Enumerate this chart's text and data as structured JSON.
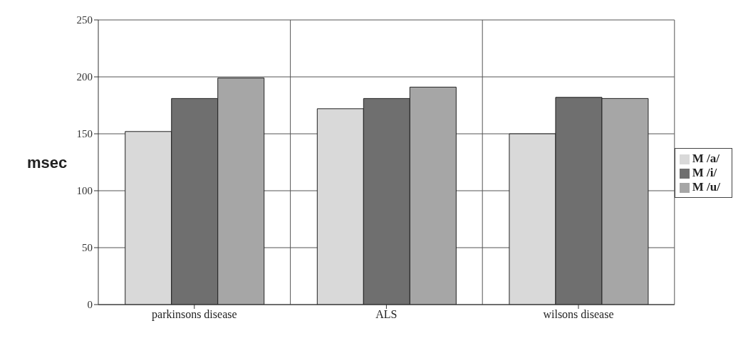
{
  "chart_data": {
    "type": "bar",
    "ylabel": "msec",
    "categories": [
      "parkinsons disease",
      "ALS",
      "wilsons disease"
    ],
    "series": [
      {
        "name": "M /a/",
        "color": "#d9d9d9",
        "values": [
          152,
          172,
          150
        ]
      },
      {
        "name": "M /i/",
        "color": "#6f6f6f",
        "values": [
          181,
          181,
          182
        ]
      },
      {
        "name": "M /u/",
        "color": "#a6a6a6",
        "values": [
          199,
          191,
          181
        ]
      }
    ],
    "ylim": [
      0,
      250
    ],
    "yticks": [
      0,
      50,
      100,
      150,
      200,
      250
    ],
    "grid": true,
    "legend": "right"
  }
}
